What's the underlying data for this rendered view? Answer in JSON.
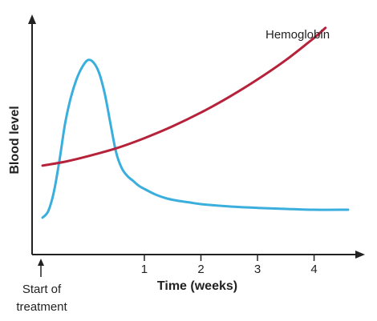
{
  "chart_data": {
    "type": "line",
    "xlabel": "Time (weeks)",
    "ylabel": "Blood level",
    "xlim": [
      -0.8,
      4.8
    ],
    "ylim": [
      0,
      100
    ],
    "x_ticks": [
      "1",
      "2",
      "3",
      "4"
    ],
    "y_ticks": [],
    "grid": false,
    "annotations": [
      {
        "text_lines": [
          "Start of",
          "treatment"
        ],
        "x": -0.8
      }
    ],
    "series": [
      {
        "name": "Hemoglobin",
        "color": "#b5223a",
        "x": [
          -0.8,
          -0.4,
          0.0,
          0.5,
          1.0,
          1.5,
          2.0,
          2.5,
          3.0,
          3.5,
          4.0,
          4.2
        ],
        "y": [
          35.8,
          37.7,
          40.3,
          44.1,
          49.0,
          54.7,
          61.3,
          68.8,
          77.2,
          86.5,
          97.2,
          102.0
        ]
      },
      {
        "name": "",
        "color": "#3aaedc",
        "x": [
          -0.8,
          -0.7,
          -0.6,
          -0.5,
          -0.4,
          -0.3,
          -0.2,
          -0.1,
          0.0,
          0.1,
          0.2,
          0.3,
          0.4,
          0.5,
          0.6,
          0.7,
          0.8,
          0.9,
          1.0,
          1.2,
          1.4,
          1.6,
          1.8,
          2.0,
          2.5,
          3.0,
          3.5,
          4.0,
          4.6
        ],
        "y": [
          10.8,
          13.9,
          23.1,
          38.5,
          56.2,
          68.5,
          77.2,
          83.1,
          86.5,
          85.4,
          80.4,
          70.4,
          56.2,
          42.3,
          34.6,
          30.8,
          28.5,
          26.2,
          24.6,
          21.9,
          20.0,
          18.9,
          18.1,
          17.3,
          16.2,
          15.5,
          15.0,
          14.6,
          14.6
        ]
      }
    ]
  }
}
